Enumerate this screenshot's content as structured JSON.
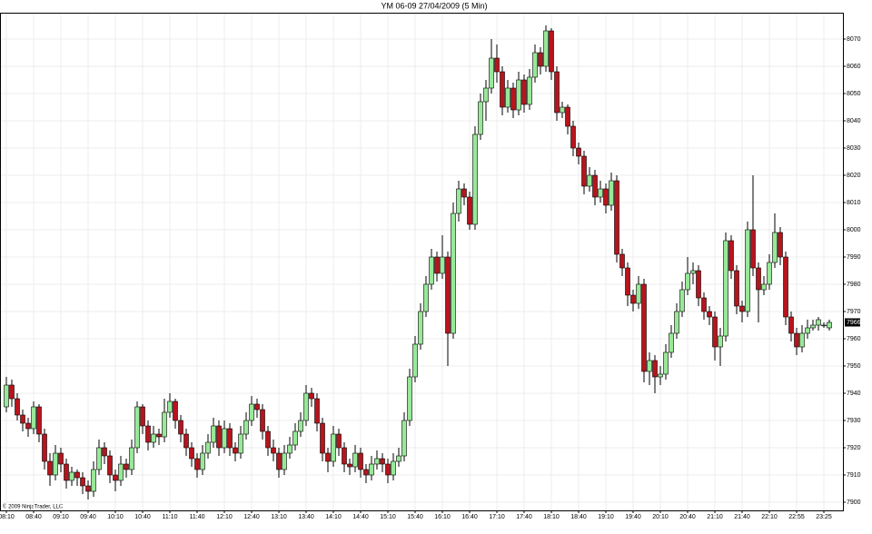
{
  "chart_data": {
    "type": "candlestick",
    "title": "YM 06-09  27/04/2009 (5 Min)",
    "note": "© 2009 NinjaTrader, LLC",
    "up_color": "#98e898",
    "down_color": "#b8141c",
    "outline_color": "#000000",
    "grid": true,
    "ylim": [
      7897,
      8079
    ],
    "yticks": [
      7900,
      7910,
      7920,
      7930,
      7940,
      7950,
      7960,
      7970,
      7980,
      7990,
      8000,
      8010,
      8020,
      8030,
      8040,
      8050,
      8060,
      8070
    ],
    "categories": [
      "08:10",
      null,
      null,
      null,
      null,
      "08:40",
      null,
      null,
      null,
      null,
      "09:10",
      null,
      null,
      null,
      null,
      "09:40",
      null,
      null,
      null,
      null,
      "10:10",
      null,
      null,
      null,
      null,
      "10:40",
      null,
      null,
      null,
      null,
      "11:10",
      null,
      null,
      null,
      null,
      "11:40",
      null,
      null,
      null,
      null,
      "12:10",
      null,
      null,
      null,
      null,
      "12:40",
      null,
      null,
      null,
      null,
      "13:10",
      null,
      null,
      null,
      null,
      "13:40",
      null,
      null,
      null,
      null,
      "14:10",
      null,
      null,
      null,
      null,
      "14:40",
      null,
      null,
      null,
      null,
      "15:10",
      null,
      null,
      null,
      null,
      "15:40",
      null,
      null,
      null,
      null,
      "16:10",
      null,
      null,
      null,
      null,
      "16:40",
      null,
      null,
      null,
      null,
      "17:10",
      null,
      null,
      null,
      null,
      "17:40",
      null,
      null,
      null,
      null,
      "18:10",
      null,
      null,
      null,
      null,
      "18:40",
      null,
      null,
      null,
      null,
      "19:10",
      null,
      null,
      null,
      null,
      "19:40",
      null,
      null,
      null,
      null,
      "20:10",
      null,
      null,
      null,
      null,
      "20:40",
      null,
      null,
      null,
      null,
      "21:10",
      null,
      null,
      null,
      null,
      "21:40",
      null,
      null,
      null,
      null,
      "22:10",
      null,
      null,
      null,
      null,
      "22:55",
      null,
      null,
      null,
      null,
      "23:25",
      null
    ],
    "ohlc": [
      [
        7935,
        7946,
        7933,
        7943
      ],
      [
        7943,
        7945,
        7935,
        7938
      ],
      [
        7938,
        7940,
        7930,
        7932
      ],
      [
        7932,
        7934,
        7926,
        7929
      ],
      [
        7929,
        7931,
        7924,
        7927
      ],
      [
        7927,
        7937,
        7925,
        7935
      ],
      [
        7935,
        7936,
        7922,
        7925
      ],
      [
        7925,
        7927,
        7912,
        7915
      ],
      [
        7915,
        7918,
        7906,
        7910
      ],
      [
        7910,
        7921,
        7908,
        7918
      ],
      [
        7918,
        7920,
        7911,
        7914
      ],
      [
        7914,
        7916,
        7905,
        7908
      ],
      [
        7908,
        7913,
        7906,
        7911
      ],
      [
        7911,
        7912,
        7906,
        7909
      ],
      [
        7909,
        7911,
        7903,
        7906
      ],
      [
        7906,
        7908,
        7901,
        7904
      ],
      [
        7904,
        7915,
        7902,
        7912
      ],
      [
        7912,
        7923,
        7910,
        7920
      ],
      [
        7920,
        7922,
        7914,
        7917
      ],
      [
        7917,
        7919,
        7907,
        7910
      ],
      [
        7910,
        7912,
        7904,
        7908
      ],
      [
        7908,
        7917,
        7906,
        7914
      ],
      [
        7914,
        7916,
        7909,
        7912
      ],
      [
        7912,
        7923,
        7910,
        7920
      ],
      [
        7920,
        7937,
        7918,
        7935
      ],
      [
        7935,
        7936,
        7925,
        7928
      ],
      [
        7928,
        7930,
        7919,
        7922
      ],
      [
        7922,
        7928,
        7920,
        7925
      ],
      [
        7925,
        7927,
        7921,
        7924
      ],
      [
        7924,
        7938,
        7922,
        7933
      ],
      [
        7933,
        7940,
        7931,
        7937
      ],
      [
        7937,
        7938,
        7927,
        7930
      ],
      [
        7930,
        7932,
        7922,
        7925
      ],
      [
        7925,
        7927,
        7917,
        7920
      ],
      [
        7920,
        7922,
        7913,
        7916
      ],
      [
        7916,
        7918,
        7909,
        7912
      ],
      [
        7912,
        7921,
        7910,
        7918
      ],
      [
        7918,
        7925,
        7916,
        7922
      ],
      [
        7922,
        7931,
        7920,
        7928
      ],
      [
        7928,
        7930,
        7917,
        7920
      ],
      [
        7920,
        7930,
        7918,
        7927
      ],
      [
        7927,
        7929,
        7917,
        7920
      ],
      [
        7920,
        7922,
        7915,
        7918
      ],
      [
        7918,
        7928,
        7916,
        7925
      ],
      [
        7925,
        7933,
        7923,
        7930
      ],
      [
        7930,
        7939,
        7928,
        7936
      ],
      [
        7936,
        7938,
        7931,
        7934
      ],
      [
        7934,
        7936,
        7923,
        7926
      ],
      [
        7926,
        7928,
        7917,
        7920
      ],
      [
        7920,
        7923,
        7915,
        7918
      ],
      [
        7918,
        7920,
        7909,
        7912
      ],
      [
        7912,
        7921,
        7910,
        7918
      ],
      [
        7918,
        7924,
        7916,
        7921
      ],
      [
        7921,
        7929,
        7919,
        7926
      ],
      [
        7926,
        7933,
        7924,
        7930
      ],
      [
        7930,
        7943,
        7928,
        7940
      ],
      [
        7940,
        7942,
        7935,
        7938
      ],
      [
        7938,
        7940,
        7926,
        7929
      ],
      [
        7929,
        7931,
        7915,
        7918
      ],
      [
        7918,
        7920,
        7911,
        7915
      ],
      [
        7915,
        7928,
        7913,
        7925
      ],
      [
        7925,
        7927,
        7917,
        7920
      ],
      [
        7920,
        7922,
        7911,
        7914
      ],
      [
        7914,
        7916,
        7910,
        7913
      ],
      [
        7913,
        7921,
        7911,
        7918
      ],
      [
        7918,
        7920,
        7909,
        7912
      ],
      [
        7912,
        7914,
        7907,
        7910
      ],
      [
        7910,
        7917,
        7908,
        7914
      ],
      [
        7914,
        7919,
        7912,
        7916
      ],
      [
        7916,
        7918,
        7911,
        7914
      ],
      [
        7914,
        7916,
        7907,
        7910
      ],
      [
        7910,
        7918,
        7908,
        7915
      ],
      [
        7915,
        7920,
        7913,
        7917
      ],
      [
        7917,
        7933,
        7915,
        7930
      ],
      [
        7930,
        7949,
        7928,
        7946
      ],
      [
        7946,
        7961,
        7944,
        7958
      ],
      [
        7958,
        7973,
        7956,
        7970
      ],
      [
        7970,
        7983,
        7968,
        7980
      ],
      [
        7980,
        7993,
        7978,
        7990
      ],
      [
        7990,
        7992,
        7981,
        7984
      ],
      [
        7984,
        7998,
        7982,
        7990
      ],
      [
        7990,
        7992,
        7950,
        7962
      ],
      [
        7962,
        8010,
        7960,
        8006
      ],
      [
        8006,
        8018,
        8003,
        8015
      ],
      [
        8015,
        8017,
        8009,
        8012
      ],
      [
        8012,
        8014,
        8000,
        8002
      ],
      [
        8002,
        8038,
        8000,
        8035
      ],
      [
        8035,
        8050,
        8033,
        8047
      ],
      [
        8047,
        8055,
        8040,
        8052
      ],
      [
        8052,
        8070,
        8050,
        8063
      ],
      [
        8063,
        8068,
        8054,
        8058
      ],
      [
        8058,
        8060,
        8042,
        8045
      ],
      [
        8045,
        8055,
        8043,
        8052
      ],
      [
        8052,
        8054,
        8041,
        8044
      ],
      [
        8044,
        8058,
        8042,
        8055
      ],
      [
        8055,
        8057,
        8043,
        8046
      ],
      [
        8046,
        8059,
        8044,
        8056
      ],
      [
        8056,
        8068,
        8054,
        8065
      ],
      [
        8065,
        8067,
        8057,
        8060
      ],
      [
        8060,
        8075,
        8058,
        8073
      ],
      [
        8073,
        8074,
        8055,
        8058
      ],
      [
        8058,
        8060,
        8040,
        8043
      ],
      [
        8043,
        8047,
        8041,
        8045
      ],
      [
        8045,
        8046,
        8035,
        8038
      ],
      [
        8038,
        8040,
        8027,
        8030
      ],
      [
        8030,
        8032,
        8024,
        8027
      ],
      [
        8027,
        8029,
        8013,
        8016
      ],
      [
        8016,
        8023,
        8014,
        8020
      ],
      [
        8020,
        8022,
        8009,
        8012
      ],
      [
        8012,
        8018,
        8010,
        8015
      ],
      [
        8015,
        8017,
        8006,
        8009
      ],
      [
        8009,
        8021,
        8007,
        8018
      ],
      [
        8018,
        8020,
        7988,
        7991
      ],
      [
        7991,
        7993,
        7983,
        7986
      ],
      [
        7986,
        7988,
        7972,
        7976
      ],
      [
        7976,
        7978,
        7970,
        7973
      ],
      [
        7973,
        7983,
        7971,
        7980
      ],
      [
        7980,
        7982,
        7944,
        7948
      ],
      [
        7948,
        7955,
        7943,
        7952
      ],
      [
        7952,
        7954,
        7940,
        7946
      ],
      [
        7946,
        7950,
        7943,
        7947
      ],
      [
        7947,
        7958,
        7945,
        7955
      ],
      [
        7955,
        7965,
        7953,
        7962
      ],
      [
        7962,
        7973,
        7960,
        7970
      ],
      [
        7970,
        7981,
        7968,
        7978
      ],
      [
        7978,
        7990,
        7976,
        7984
      ],
      [
        7984,
        7988,
        7980,
        7985
      ],
      [
        7985,
        7987,
        7972,
        7975
      ],
      [
        7975,
        7977,
        7967,
        7970
      ],
      [
        7970,
        7972,
        7965,
        7968
      ],
      [
        7968,
        7970,
        7952,
        7957
      ],
      [
        7957,
        7964,
        7950,
        7961
      ],
      [
        7961,
        7999,
        7959,
        7996
      ],
      [
        7996,
        7998,
        7982,
        7985
      ],
      [
        7985,
        7987,
        7969,
        7972
      ],
      [
        7972,
        7974,
        7966,
        7970
      ],
      [
        7970,
        8003,
        7968,
        8000
      ],
      [
        8000,
        8020,
        7983,
        7986
      ],
      [
        7986,
        7988,
        7966,
        7978
      ],
      [
        7978,
        7983,
        7976,
        7980
      ],
      [
        7980,
        7991,
        7978,
        7988
      ],
      [
        7988,
        8006,
        7986,
        7999
      ],
      [
        7999,
        8001,
        7987,
        7990
      ],
      [
        7990,
        7992,
        7965,
        7968
      ],
      [
        7968,
        7970,
        7959,
        7962
      ],
      [
        7962,
        7964,
        7954,
        7957
      ],
      [
        7957,
        7965,
        7955,
        7962
      ],
      [
        7962,
        7967,
        7960,
        7964
      ],
      [
        7964,
        7967,
        7963,
        7965
      ],
      [
        7965,
        7968,
        7963,
        7967
      ],
      [
        7965,
        7966,
        7964,
        7965
      ],
      [
        7964,
        7967,
        7963,
        7966
      ]
    ]
  }
}
